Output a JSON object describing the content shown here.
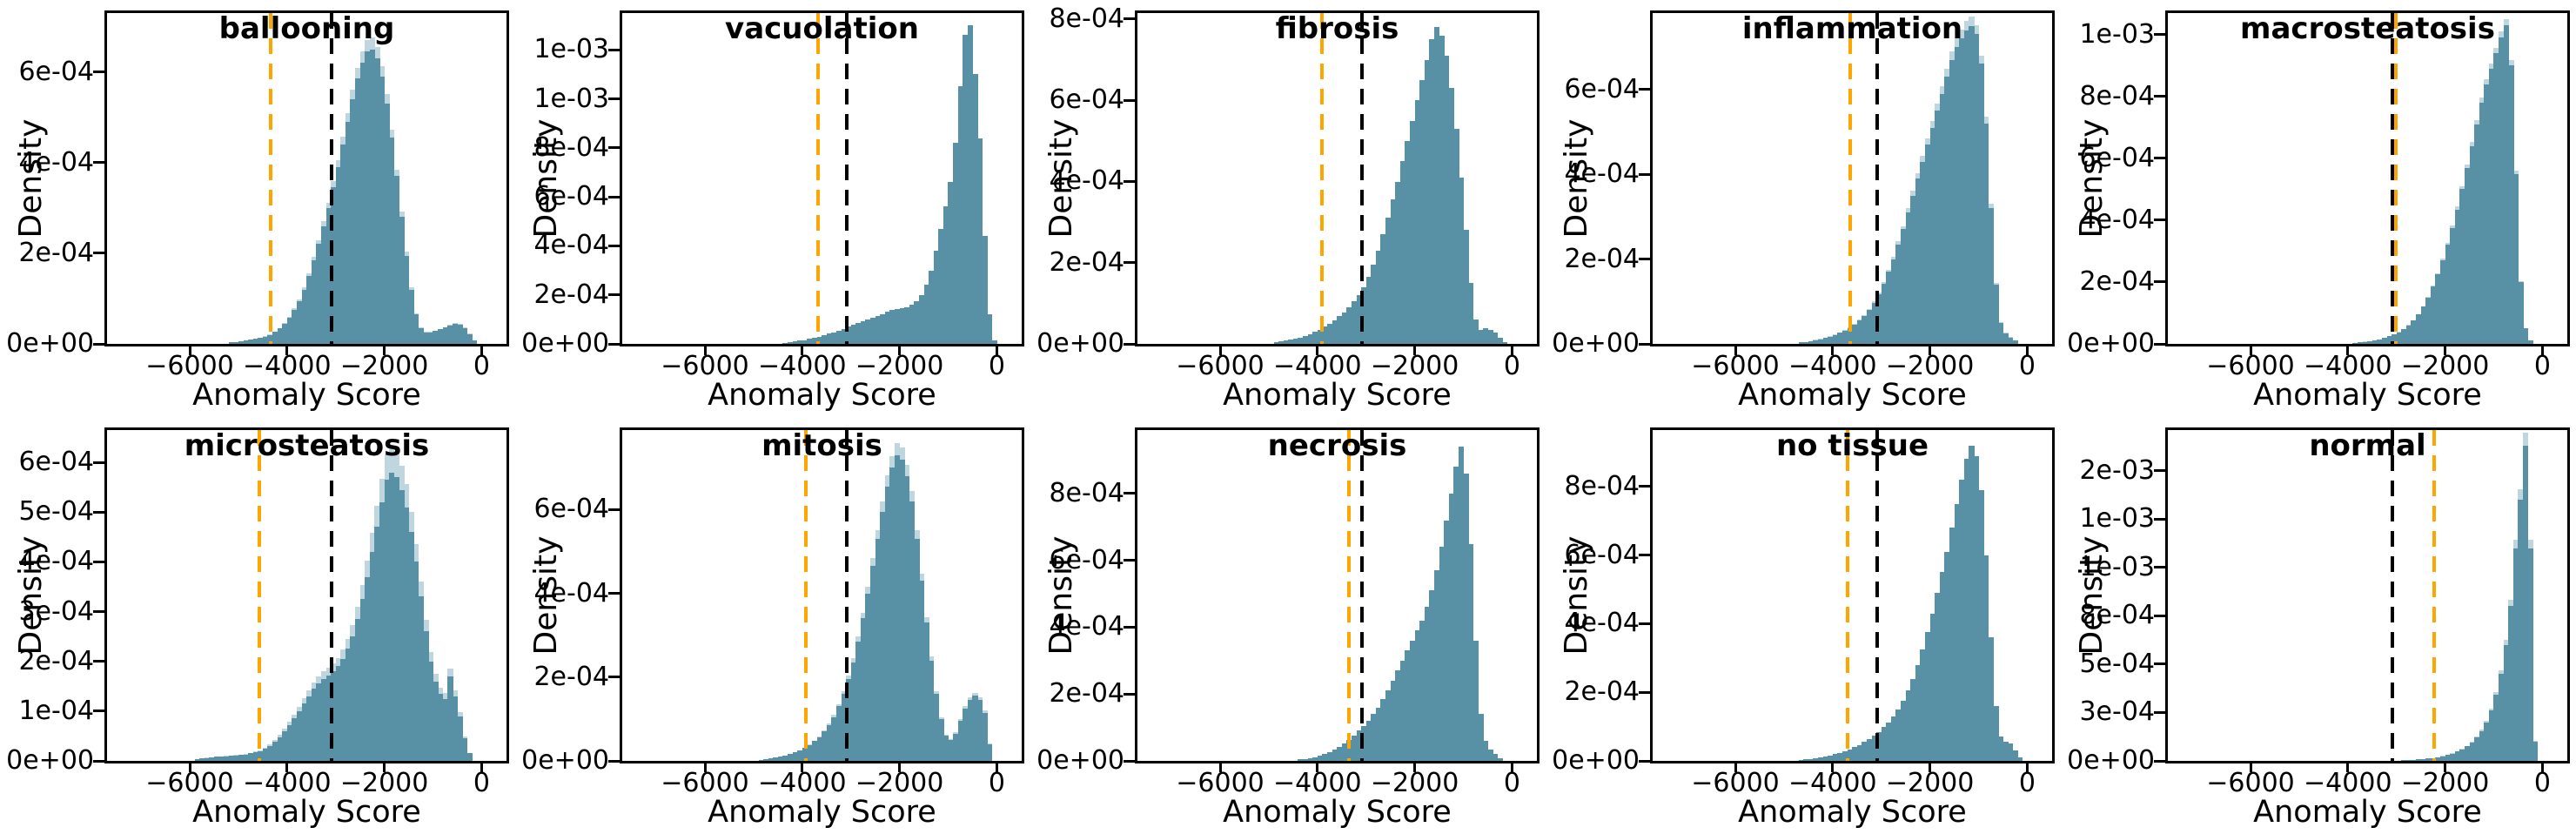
{
  "figure": {
    "xlabel": "Anomaly Score",
    "ylabel": "Density",
    "bar_color": "#5890a5",
    "bar_light_color": "#bfd6df",
    "orange_line_color": "#ffa500",
    "black_line_color": "#000000",
    "density_unit": "1e-04",
    "x_ticks": [
      {
        "v": -6000,
        "label": "−6000"
      },
      {
        "v": -4000,
        "label": "−4000"
      },
      {
        "v": -2000,
        "label": "−2000"
      },
      {
        "v": 0,
        "label": "0"
      }
    ],
    "xlim": [
      -7700,
      512
    ]
  },
  "chart_data": [
    {
      "type": "bar",
      "title": "ballooning",
      "xlabel": "Anomaly Score",
      "ylabel": "Density",
      "xlim": [
        -7700,
        512
      ],
      "ylim_e4": 7.3,
      "orange_line": -4330,
      "black_line": -3080,
      "light_scale": 1.04,
      "bin_start": -5200,
      "bin_width": 100,
      "values_e4": [
        0.03,
        0.04,
        0.05,
        0.07,
        0.09,
        0.11,
        0.13,
        0.16,
        0.2,
        0.26,
        0.34,
        0.45,
        0.58,
        0.75,
        0.95,
        1.2,
        1.5,
        1.85,
        2.2,
        2.6,
        3.0,
        3.45,
        3.9,
        4.4,
        4.9,
        5.4,
        5.85,
        6.2,
        6.45,
        6.5,
        6.3,
        5.9,
        5.3,
        4.55,
        3.7,
        2.8,
        1.95,
        1.2,
        0.65,
        0.35,
        0.25,
        0.25,
        0.28,
        0.32,
        0.36,
        0.4,
        0.44,
        0.42,
        0.35,
        0.22,
        0.08
      ],
      "y_ticks": [
        {
          "v": 0,
          "label": "0e+00"
        },
        {
          "v": 2,
          "label": "2e-04"
        },
        {
          "v": 4,
          "label": "4e-04"
        },
        {
          "v": 6,
          "label": "6e-04"
        }
      ]
    },
    {
      "type": "bar",
      "title": "vacuolation",
      "xlabel": "Anomaly Score",
      "ylabel": "Density",
      "xlim": [
        -7700,
        512
      ],
      "ylim_e4": 13.5,
      "orange_line": -3680,
      "black_line": -3080,
      "light_scale": 0,
      "bin_start": -4400,
      "bin_width": 100,
      "values_e4": [
        0.05,
        0.08,
        0.1,
        0.13,
        0.16,
        0.2,
        0.25,
        0.3,
        0.36,
        0.42,
        0.48,
        0.55,
        0.62,
        0.7,
        0.78,
        0.85,
        0.93,
        1.0,
        1.08,
        1.15,
        1.22,
        1.3,
        1.38,
        1.42,
        1.45,
        1.5,
        1.6,
        1.75,
        2.0,
        2.4,
        3.0,
        3.8,
        4.7,
        5.6,
        6.6,
        8.2,
        10.5,
        12.6,
        13.0,
        11.0,
        8.4,
        4.4,
        1.2,
        0.15
      ],
      "y_ticks": [
        {
          "v": 0,
          "label": "0e+00"
        },
        {
          "v": 2,
          "label": "2e-04"
        },
        {
          "v": 4,
          "label": "4e-04"
        },
        {
          "v": 6,
          "label": "6e-04"
        },
        {
          "v": 8,
          "label": "8e-04"
        },
        {
          "v": 10,
          "label": "1e-03"
        },
        {
          "v": 12,
          "label": "1e-03"
        }
      ]
    },
    {
      "type": "bar",
      "title": "fibrosis",
      "xlabel": "Anomaly Score",
      "ylabel": "Density",
      "xlim": [
        -7700,
        512
      ],
      "ylim_e4": 8.15,
      "orange_line": -3900,
      "black_line": -3080,
      "light_scale": 0,
      "bin_start": -4900,
      "bin_width": 100,
      "values_e4": [
        0.04,
        0.06,
        0.08,
        0.1,
        0.13,
        0.16,
        0.2,
        0.24,
        0.29,
        0.35,
        0.42,
        0.5,
        0.58,
        0.68,
        0.78,
        0.9,
        1.05,
        1.2,
        1.4,
        1.65,
        1.95,
        2.3,
        2.7,
        3.1,
        3.55,
        4.0,
        4.5,
        5.0,
        5.5,
        6.0,
        6.5,
        7.0,
        7.5,
        7.8,
        7.6,
        7.1,
        6.3,
        5.3,
        4.1,
        2.8,
        1.5,
        0.6,
        0.35,
        0.38,
        0.35,
        0.28,
        0.15,
        0.05
      ],
      "y_ticks": [
        {
          "v": 0,
          "label": "0e+00"
        },
        {
          "v": 2,
          "label": "2e-04"
        },
        {
          "v": 4,
          "label": "4e-04"
        },
        {
          "v": 6,
          "label": "6e-04"
        },
        {
          "v": 8,
          "label": "8e-04"
        }
      ]
    },
    {
      "type": "bar",
      "title": "inflammation",
      "xlabel": "Anomaly Score",
      "ylabel": "Density",
      "xlim": [
        -7700,
        512
      ],
      "ylim_e4": 7.8,
      "orange_line": -3640,
      "black_line": -3080,
      "light_scale": 1.03,
      "bin_start": -4700,
      "bin_width": 100,
      "values_e4": [
        0.04,
        0.05,
        0.07,
        0.09,
        0.11,
        0.14,
        0.17,
        0.21,
        0.26,
        0.31,
        0.38,
        0.46,
        0.55,
        0.66,
        0.8,
        0.97,
        1.18,
        1.42,
        1.7,
        2.0,
        2.35,
        2.7,
        3.1,
        3.5,
        3.9,
        4.3,
        4.7,
        5.1,
        5.5,
        5.9,
        6.3,
        6.7,
        7.0,
        7.2,
        7.4,
        7.5,
        7.3,
        6.6,
        5.2,
        3.2,
        1.4,
        0.5,
        0.25,
        0.15,
        0.08
      ],
      "y_ticks": [
        {
          "v": 0,
          "label": "0e+00"
        },
        {
          "v": 2,
          "label": "2e-04"
        },
        {
          "v": 4,
          "label": "4e-04"
        },
        {
          "v": 6,
          "label": "6e-04"
        }
      ]
    },
    {
      "type": "bar",
      "title": "macrosteatosis",
      "xlabel": "Anomaly Score",
      "ylabel": "Density",
      "xlim": [
        -7700,
        512
      ],
      "ylim_e4": 10.7,
      "orange_line": -3010,
      "black_line": -3090,
      "light_scale": 1.02,
      "bin_start": -3900,
      "bin_width": 100,
      "values_e4": [
        0.04,
        0.05,
        0.07,
        0.09,
        0.12,
        0.15,
        0.19,
        0.24,
        0.3,
        0.38,
        0.48,
        0.6,
        0.75,
        0.95,
        1.2,
        1.5,
        1.85,
        2.25,
        2.7,
        3.2,
        3.75,
        4.35,
        5.0,
        5.7,
        6.4,
        7.1,
        7.8,
        8.4,
        8.9,
        9.4,
        9.9,
        10.3,
        9.0,
        5.5,
        2.0,
        0.5,
        0.1
      ],
      "y_ticks": [
        {
          "v": 0,
          "label": "0e+00"
        },
        {
          "v": 2,
          "label": "2e-04"
        },
        {
          "v": 4,
          "label": "4e-04"
        },
        {
          "v": 6,
          "label": "6e-04"
        },
        {
          "v": 8,
          "label": "8e-04"
        },
        {
          "v": 10,
          "label": "1e-03"
        }
      ]
    },
    {
      "type": "bar",
      "title": "microsteatosis",
      "xlabel": "Anomaly Score",
      "ylabel": "Density",
      "xlim": [
        -7700,
        512
      ],
      "ylim_e4": 6.65,
      "orange_line": -4570,
      "black_line": -3080,
      "light_scale": 1.09,
      "bin_start": -5900,
      "bin_width": 100,
      "values_e4": [
        0.04,
        0.05,
        0.06,
        0.07,
        0.08,
        0.08,
        0.09,
        0.1,
        0.11,
        0.12,
        0.13,
        0.15,
        0.17,
        0.2,
        0.24,
        0.3,
        0.38,
        0.48,
        0.6,
        0.72,
        0.85,
        1.0,
        1.15,
        1.3,
        1.45,
        1.55,
        1.65,
        1.72,
        1.8,
        1.9,
        2.05,
        2.25,
        2.5,
        2.85,
        3.25,
        3.7,
        4.2,
        4.7,
        5.2,
        5.65,
        5.8,
        5.7,
        5.45,
        5.1,
        4.6,
        4.0,
        3.3,
        2.6,
        2.0,
        1.6,
        1.35,
        1.25,
        1.7,
        1.3,
        0.9,
        0.45,
        0.15
      ],
      "y_ticks": [
        {
          "v": 0,
          "label": "0e+00"
        },
        {
          "v": 1,
          "label": "1e-04"
        },
        {
          "v": 2,
          "label": "2e-04"
        },
        {
          "v": 3,
          "label": "3e-04"
        },
        {
          "v": 4,
          "label": "4e-04"
        },
        {
          "v": 5,
          "label": "5e-04"
        },
        {
          "v": 6,
          "label": "6e-04"
        }
      ]
    },
    {
      "type": "bar",
      "title": "mitosis",
      "xlabel": "Anomaly Score",
      "ylabel": "Density",
      "xlim": [
        -7700,
        512
      ],
      "ylim_e4": 7.9,
      "orange_line": -3920,
      "black_line": -3080,
      "light_scale": 1.04,
      "bin_start": -4900,
      "bin_width": 100,
      "values_e4": [
        0.03,
        0.04,
        0.06,
        0.08,
        0.1,
        0.13,
        0.16,
        0.2,
        0.25,
        0.31,
        0.38,
        0.47,
        0.57,
        0.7,
        0.85,
        1.05,
        1.3,
        1.6,
        1.95,
        2.35,
        2.85,
        3.4,
        4.0,
        4.65,
        5.3,
        5.95,
        6.55,
        7.0,
        7.3,
        7.2,
        6.8,
        6.2,
        5.3,
        4.3,
        3.3,
        2.4,
        1.6,
        1.0,
        0.6,
        0.5,
        0.65,
        0.95,
        1.25,
        1.45,
        1.55,
        1.45,
        1.15,
        0.4
      ],
      "y_ticks": [
        {
          "v": 0,
          "label": "0e+00"
        },
        {
          "v": 2,
          "label": "2e-04"
        },
        {
          "v": 4,
          "label": "4e-04"
        },
        {
          "v": 6,
          "label": "6e-04"
        }
      ]
    },
    {
      "type": "bar",
      "title": "necrosis",
      "xlabel": "Anomaly Score",
      "ylabel": "Density",
      "xlim": [
        -7700,
        512
      ],
      "ylim_e4": 9.9,
      "orange_line": -3360,
      "black_line": -3080,
      "light_scale": 0,
      "bin_start": -4400,
      "bin_width": 100,
      "values_e4": [
        0.04,
        0.06,
        0.08,
        0.11,
        0.15,
        0.2,
        0.26,
        0.33,
        0.42,
        0.52,
        0.63,
        0.76,
        0.9,
        1.05,
        1.2,
        1.4,
        1.6,
        1.85,
        2.1,
        2.4,
        2.7,
        3.0,
        3.3,
        3.6,
        3.9,
        4.2,
        4.6,
        5.1,
        5.7,
        6.4,
        7.2,
        8.0,
        8.8,
        9.4,
        8.6,
        6.5,
        3.6,
        1.4,
        0.6,
        0.35,
        0.2,
        0.08
      ],
      "y_ticks": [
        {
          "v": 0,
          "label": "0e+00"
        },
        {
          "v": 2,
          "label": "2e-04"
        },
        {
          "v": 4,
          "label": "4e-04"
        },
        {
          "v": 6,
          "label": "6e-04"
        },
        {
          "v": 8,
          "label": "8e-04"
        }
      ]
    },
    {
      "type": "bar",
      "title": "no tissue",
      "xlabel": "Anomaly Score",
      "ylabel": "Density",
      "xlim": [
        -7700,
        512
      ],
      "ylim_e4": 9.65,
      "orange_line": -3700,
      "black_line": -3080,
      "light_scale": 0,
      "bin_start": -4700,
      "bin_width": 100,
      "values_e4": [
        0.03,
        0.04,
        0.06,
        0.08,
        0.1,
        0.13,
        0.16,
        0.2,
        0.24,
        0.29,
        0.34,
        0.4,
        0.47,
        0.55,
        0.64,
        0.74,
        0.85,
        0.98,
        1.12,
        1.3,
        1.5,
        1.75,
        2.05,
        2.4,
        2.8,
        3.25,
        3.75,
        4.3,
        4.9,
        5.5,
        6.1,
        6.8,
        7.5,
        8.2,
        8.8,
        9.2,
        8.9,
        7.9,
        6.0,
        3.6,
        1.6,
        0.7,
        0.55,
        0.5,
        0.3,
        0.1
      ],
      "y_ticks": [
        {
          "v": 0,
          "label": "0e+00"
        },
        {
          "v": 2,
          "label": "2e-04"
        },
        {
          "v": 4,
          "label": "4e-04"
        },
        {
          "v": 6,
          "label": "6e-04"
        },
        {
          "v": 8,
          "label": "8e-04"
        }
      ]
    },
    {
      "type": "bar",
      "title": "normal",
      "xlabel": "Anomaly Score",
      "ylabel": "Density",
      "xlim": [
        -7700,
        512
      ],
      "ylim_e4": 17.1,
      "orange_line": -2230,
      "black_line": -3080,
      "light_scale": 1.04,
      "bin_start": -2900,
      "bin_width": 100,
      "values_e4": [
        0.03,
        0.04,
        0.05,
        0.07,
        0.09,
        0.12,
        0.15,
        0.19,
        0.24,
        0.3,
        0.38,
        0.48,
        0.6,
        0.75,
        0.95,
        1.2,
        1.55,
        2.0,
        2.6,
        3.4,
        4.5,
        6.0,
        8.0,
        11.0,
        13.5,
        16.3,
        11.0,
        1.0
      ],
      "y_ticks": [
        {
          "v": 0,
          "label": "0e+00"
        },
        {
          "v": 2.5,
          "label": "3e-04"
        },
        {
          "v": 5,
          "label": "5e-04"
        },
        {
          "v": 7.5,
          "label": "8e-04"
        },
        {
          "v": 10,
          "label": "1e-03"
        },
        {
          "v": 12.5,
          "label": "1e-03"
        },
        {
          "v": 15,
          "label": "2e-03"
        }
      ]
    }
  ]
}
